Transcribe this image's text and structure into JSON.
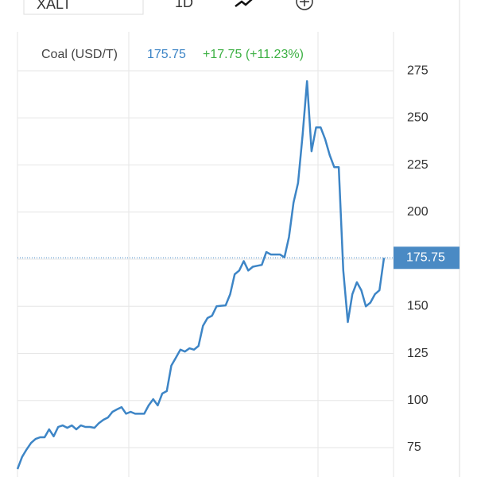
{
  "toolbar": {
    "symbol": "XALT",
    "range": "1D"
  },
  "chart_data": {
    "type": "line",
    "title": "Coal (USD/T)",
    "price": 175.75,
    "change": "+17.75 (+11.23%)",
    "series": [
      {
        "name": "Coal (USD/T)",
        "color": "#3d85c6",
        "values": [
          63.6,
          70,
          74,
          77.5,
          79.6,
          80.5,
          80.5,
          84.7,
          81,
          86,
          86.8,
          85.5,
          86.8,
          84.7,
          86.8,
          86,
          86,
          85.5,
          88,
          89.8,
          91,
          94,
          95.3,
          96.5,
          93,
          94,
          93,
          93,
          93,
          97.4,
          100.7,
          97.4,
          103.7,
          105,
          118.5,
          122.7,
          127,
          126,
          127.7,
          127,
          129,
          139.6,
          143.8,
          145,
          150,
          150.3,
          150.5,
          156.4,
          167,
          169,
          174,
          169,
          171,
          171.5,
          172,
          178.8,
          177.5,
          177.5,
          177.5,
          176,
          186.8,
          205,
          215.5,
          240.8,
          269.5,
          232.3,
          245,
          245,
          238.7,
          230.3,
          223.9,
          223.9,
          169,
          141.7,
          156.4,
          162.8,
          158.5,
          150,
          152,
          156.4,
          158.5,
          175.75
        ]
      }
    ],
    "ylim": [
      59.4,
      295.7
    ],
    "yticks": [
      75,
      100,
      125,
      150,
      175,
      200,
      225,
      250,
      275
    ],
    "grid": true
  }
}
